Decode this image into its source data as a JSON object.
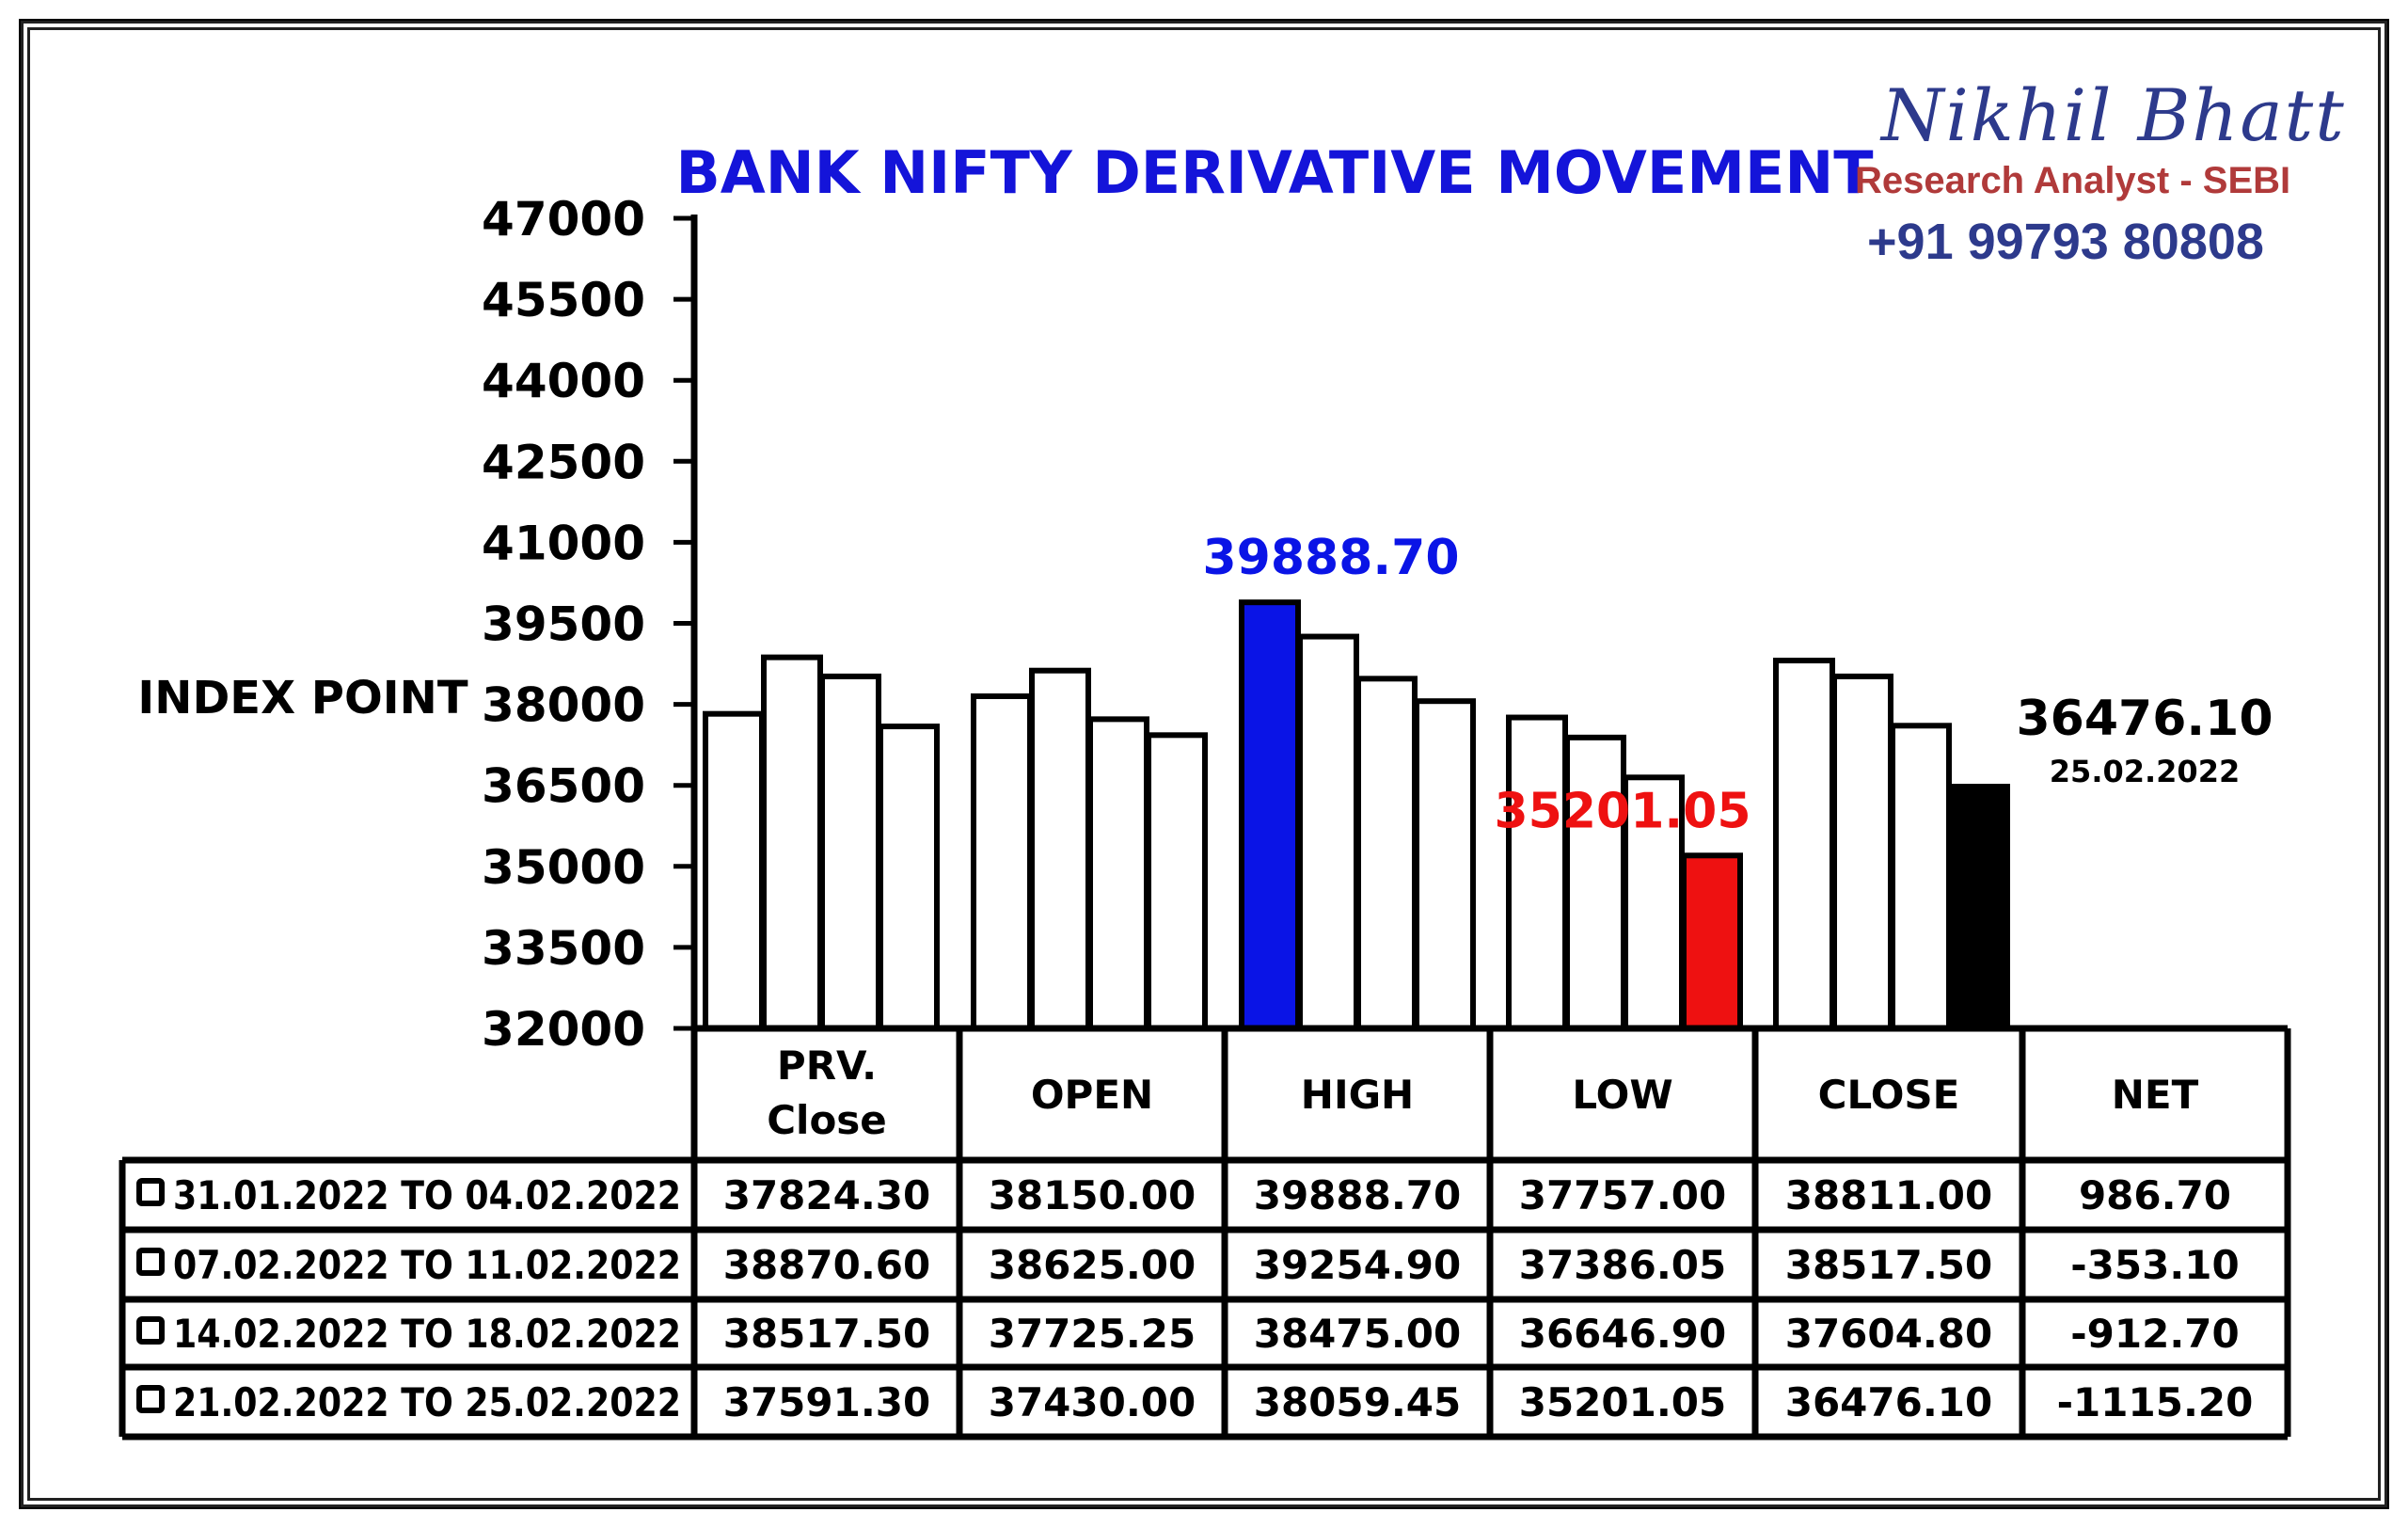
{
  "chart_data": {
    "type": "bar",
    "title": "BANK NIFTY DERIVATIVE MOVEMENT",
    "ylabel": "INDEX POINT",
    "ylim": [
      32000,
      47000
    ],
    "yticks": [
      47000,
      45500,
      44000,
      42500,
      41000,
      39500,
      38000,
      36500,
      35000,
      33500,
      32000
    ],
    "categories": [
      "PRV. Close",
      "OPEN",
      "HIGH",
      "LOW",
      "CLOSE"
    ],
    "category_labels": [
      [
        "PRV.",
        "Close"
      ],
      [
        "OPEN"
      ],
      [
        "HIGH"
      ],
      [
        "LOW"
      ],
      [
        "CLOSE"
      ]
    ],
    "series": [
      {
        "values": [
          37824.3,
          38150.0,
          39888.7,
          37757.0,
          38811.0
        ]
      },
      {
        "values": [
          38870.6,
          38625.0,
          39254.9,
          37386.05,
          38517.5
        ]
      },
      {
        "values": [
          38517.5,
          37725.25,
          38475.0,
          36646.9,
          37604.8
        ]
      },
      {
        "values": [
          37591.3,
          37430.0,
          38059.45,
          35201.05,
          36476.1
        ]
      }
    ],
    "highlights": [
      {
        "category": 2,
        "series": 0,
        "color": "#0a14e6",
        "label": "39888.70"
      },
      {
        "category": 3,
        "series": 3,
        "color": "#ee1111",
        "label": "35201.05"
      },
      {
        "category": 4,
        "series": 3,
        "color": "#000000",
        "label": "36476.10",
        "sublabel": "25.02.2022"
      }
    ],
    "table": {
      "headers": [
        [
          "PRV.",
          "Close"
        ],
        [
          "OPEN"
        ],
        [
          "HIGH"
        ],
        [
          "LOW"
        ],
        [
          "CLOSE"
        ],
        [
          "NET"
        ]
      ],
      "rows": [
        {
          "period": "31.01.2022 TO 04.02.2022",
          "values": [
            "37824.30",
            "38150.00",
            "39888.70",
            "37757.00",
            "38811.00",
            "986.70"
          ]
        },
        {
          "period": "07.02.2022 TO 11.02.2022",
          "values": [
            "38870.60",
            "38625.00",
            "39254.90",
            "37386.05",
            "38517.50",
            "-353.10"
          ]
        },
        {
          "period": "14.02.2022 TO 18.02.2022",
          "values": [
            "38517.50",
            "37725.25",
            "38475.00",
            "36646.90",
            "37604.80",
            "-912.70"
          ]
        },
        {
          "period": "21.02.2022 TO 25.02.2022",
          "values": [
            "37591.30",
            "37430.00",
            "38059.45",
            "35201.05",
            "36476.10",
            "-1115.20"
          ]
        }
      ]
    },
    "colors": {
      "title": "#1414d9",
      "default_bar": "#ffffff",
      "axis": "#000000"
    }
  },
  "brand": {
    "name": "Nikhil Bhatt",
    "role": "Research Analyst - SEBI",
    "phone": "+91 99793 80808"
  }
}
